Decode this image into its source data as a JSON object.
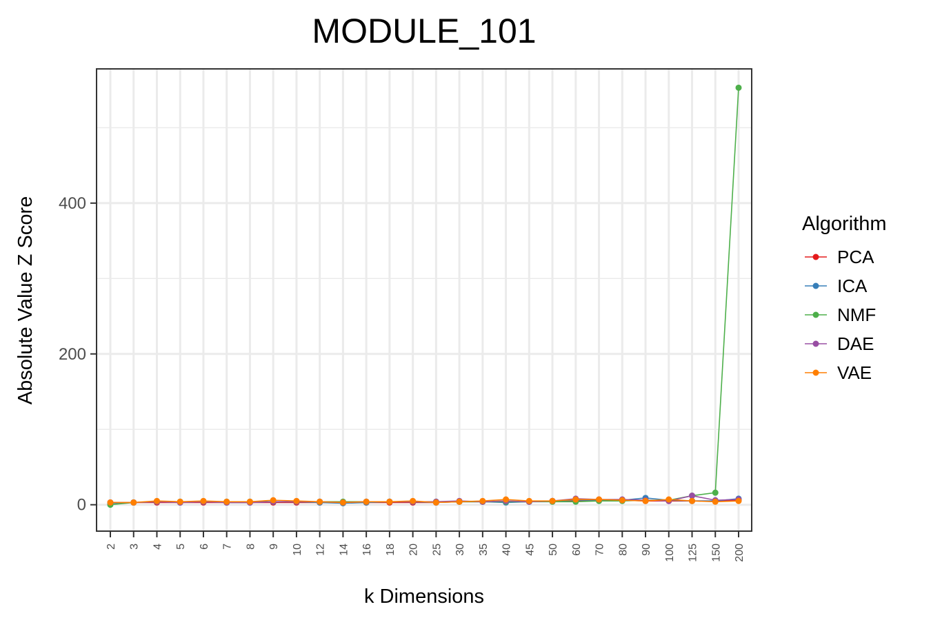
{
  "chart_data": {
    "type": "line",
    "title": "MODULE_101",
    "xlabel": "k Dimensions",
    "ylabel": "Absolute Value Z Score",
    "x_scale": "categorical",
    "categories": [
      "2",
      "3",
      "4",
      "5",
      "6",
      "7",
      "8",
      "9",
      "10",
      "12",
      "14",
      "16",
      "18",
      "20",
      "25",
      "30",
      "35",
      "40",
      "45",
      "50",
      "60",
      "70",
      "80",
      "90",
      "100",
      "125",
      "150",
      "200"
    ],
    "ylim": [
      -35,
      578
    ],
    "yticks": [
      0,
      200,
      400
    ],
    "grid": true,
    "legend": {
      "title": "Algorithm",
      "placement": "right"
    },
    "series": [
      {
        "name": "PCA",
        "color": "#E41A1C",
        "values": [
          3,
          3,
          3,
          3,
          3,
          3,
          3,
          3,
          3,
          3,
          3,
          3,
          3,
          3,
          3,
          4,
          4,
          4,
          4,
          5,
          5,
          6,
          6,
          5,
          5,
          5,
          5,
          6
        ]
      },
      {
        "name": "ICA",
        "color": "#377EB8",
        "values": [
          2,
          3,
          4,
          3,
          4,
          3,
          3,
          4,
          4,
          3,
          2,
          3,
          4,
          4,
          3,
          4,
          4,
          3,
          4,
          5,
          6,
          6,
          6,
          9,
          6,
          5,
          5,
          8
        ]
      },
      {
        "name": "NMF",
        "color": "#4DAF4A",
        "values": [
          0,
          3,
          4,
          4,
          4,
          4,
          4,
          4,
          4,
          4,
          4,
          4,
          4,
          4,
          4,
          4,
          4,
          4,
          4,
          4,
          4,
          5,
          5,
          6,
          6,
          12,
          16,
          553
        ]
      },
      {
        "name": "DAE",
        "color": "#984EA3",
        "values": [
          3,
          3,
          4,
          3,
          4,
          3,
          3,
          4,
          4,
          4,
          3,
          4,
          4,
          4,
          4,
          5,
          4,
          5,
          4,
          5,
          8,
          7,
          7,
          6,
          5,
          12,
          6,
          7
        ]
      },
      {
        "name": "VAE",
        "color": "#FF7F00",
        "values": [
          3,
          3,
          5,
          4,
          5,
          4,
          4,
          6,
          5,
          4,
          3,
          4,
          4,
          5,
          3,
          4,
          5,
          7,
          5,
          5,
          7,
          7,
          6,
          5,
          7,
          5,
          4,
          5
        ]
      }
    ]
  }
}
